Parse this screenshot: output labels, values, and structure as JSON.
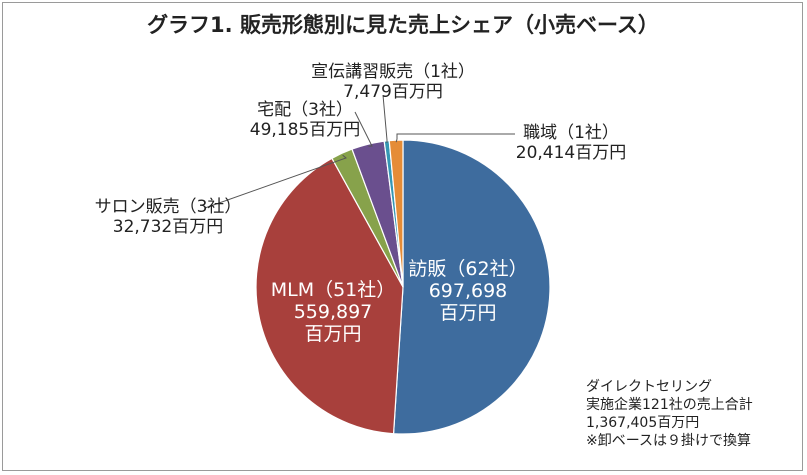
{
  "chart_data": {
    "type": "pie",
    "title": "グラフ1. 販売形態別に見た売上シェア（小売ベース）",
    "slices": [
      {
        "name": "訪販（62社）",
        "value": 697698,
        "value_label": "697,698",
        "unit": "百万円",
        "color": "#3e6c9e"
      },
      {
        "name": "MLM（51社）",
        "value": 559897,
        "value_label": "559,897",
        "unit": "百万円",
        "color": "#a8403c"
      },
      {
        "name": "サロン販売（3社）",
        "value": 32732,
        "value_label": "32,732百万円",
        "color": "#87a24b"
      },
      {
        "name": "宅配（3社）",
        "value": 49185,
        "value_label": "49,185百万円",
        "color": "#6a4f8e"
      },
      {
        "name": "宣伝講習販売（1社）",
        "value": 7479,
        "value_label": "7,479百万円",
        "color": "#3597b4"
      },
      {
        "name": "職域（1社）",
        "value": 20414,
        "value_label": "20,414百万円",
        "color": "#e58c37"
      }
    ]
  },
  "notes": [
    "ダイレクトセリング",
    "実施企業121社の売上合計",
    "1,367,405百万円",
    "※卸ベースは９掛けで換算"
  ]
}
